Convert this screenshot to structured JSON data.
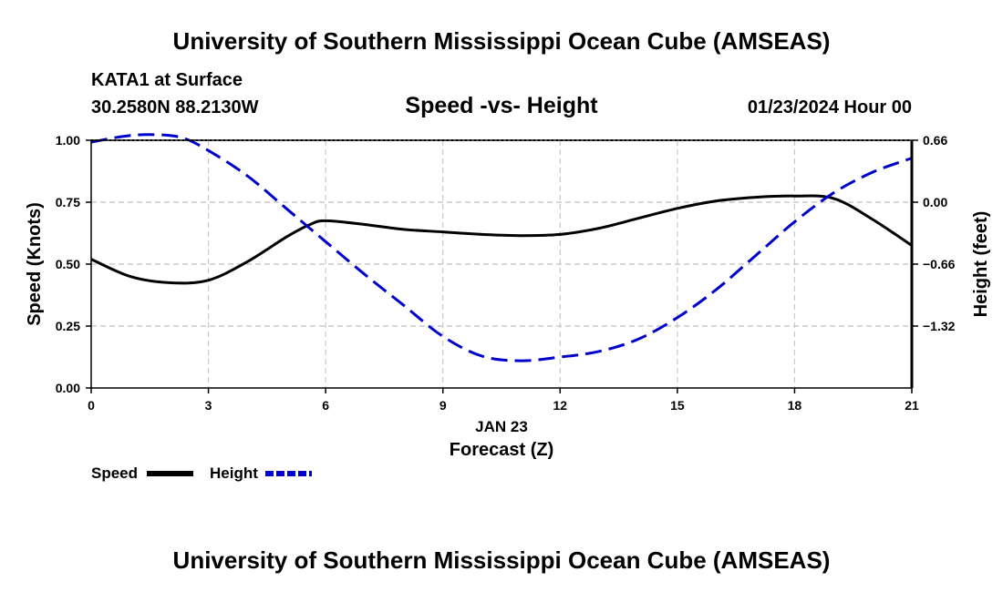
{
  "title": "University of Southern Mississippi Ocean Cube (AMSEAS)",
  "footer_title": "University of Southern Mississippi Ocean Cube (AMSEAS)",
  "station": {
    "name": "KATA1 at Surface",
    "coords": "30.2580N  88.2130W",
    "datetime": "01/23/2024 Hour 00"
  },
  "colors": {
    "speed": "#000000",
    "height": "#0000cc",
    "grid": "#c8c8c8"
  },
  "chart_data": {
    "type": "line",
    "title": "Speed -vs- Height",
    "xlabel": "Forecast (Z)",
    "xlabel_date": "JAN 23",
    "ylabel": "Speed (Knots)",
    "y2label": "Height (feet)",
    "xlim": [
      0,
      21
    ],
    "ylim": [
      0,
      1
    ],
    "y2lim": [
      -1.98,
      0.66
    ],
    "x_ticks": [
      0,
      3,
      6,
      9,
      12,
      15,
      18,
      21
    ],
    "x_tick_labels": [
      "0",
      "3",
      "6",
      "9",
      "12",
      "15",
      "18",
      "21"
    ],
    "y_ticks": [
      0,
      0.25,
      0.5,
      0.75,
      1.0
    ],
    "y_tick_labels": [
      "0.00",
      "0.25",
      "0.50",
      "0.75",
      "1.00"
    ],
    "y2_ticks": [
      0.66,
      0.0,
      -0.66,
      -1.32
    ],
    "y2_tick_labels": [
      "0.66",
      "0.00",
      "−0.66",
      "−1.32"
    ],
    "grid": true,
    "series": [
      {
        "name": "Speed",
        "axis": "left",
        "style": "solid",
        "x": [
          0,
          1,
          2,
          3,
          4,
          5,
          5.6,
          6,
          7,
          8,
          9,
          10,
          11,
          12,
          13,
          14,
          15,
          16,
          17,
          18,
          19,
          20,
          21
        ],
        "values": [
          0.52,
          0.45,
          0.425,
          0.435,
          0.51,
          0.61,
          0.66,
          0.675,
          0.66,
          0.64,
          0.63,
          0.62,
          0.615,
          0.62,
          0.645,
          0.685,
          0.725,
          0.755,
          0.77,
          0.775,
          0.765,
          0.68,
          0.575
        ]
      },
      {
        "name": "Height",
        "axis": "right",
        "style": "dashed",
        "x": [
          0,
          0.8,
          1.5,
          2.3,
          3,
          4,
          5,
          6,
          7,
          8,
          9,
          10,
          11,
          12,
          13,
          14,
          15,
          16,
          17,
          18,
          19,
          20,
          21
        ],
        "values": [
          0.64,
          0.7,
          0.72,
          0.69,
          0.55,
          0.28,
          -0.07,
          -0.42,
          -0.77,
          -1.1,
          -1.43,
          -1.64,
          -1.69,
          -1.65,
          -1.59,
          -1.46,
          -1.23,
          -0.93,
          -0.57,
          -0.21,
          0.1,
          0.32,
          0.47
        ]
      }
    ]
  }
}
